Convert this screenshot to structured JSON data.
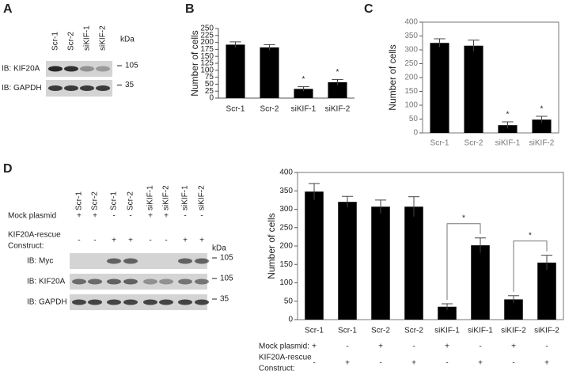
{
  "panel_labels": [
    "A",
    "B",
    "C",
    "D"
  ],
  "blot_a": {
    "lanes": [
      "Scr-1",
      "Scr-2",
      "siKIF-1",
      "siKIF-2"
    ],
    "unit": "kDa",
    "rows": [
      {
        "label": "IB: KIF20A",
        "kda": "105"
      },
      {
        "label": "IB: GAPDH",
        "kda": "35"
      }
    ]
  },
  "blot_d": {
    "lanes": [
      "Scr-1",
      "Scr-2",
      "Scr-1",
      "Scr-2",
      "siKIF-1",
      "siKIF-2",
      "siKIF-1",
      "siKIF-2"
    ],
    "unit": "kDa",
    "conditions": [
      {
        "label": [
          "Mock plasmid"
        ],
        "marks": [
          "+",
          "+",
          "-",
          "-",
          "+",
          "+",
          "-",
          "-"
        ]
      },
      {
        "label": [
          "KIF20A-rescue",
          "Construct:"
        ],
        "marks": [
          "-",
          "-",
          "+",
          "+",
          "-",
          "-",
          "+",
          "+"
        ]
      }
    ],
    "rows": [
      {
        "label": "IB: Myc",
        "kda": "105"
      },
      {
        "label": "IB: KIF20A",
        "kda": "105"
      },
      {
        "label": "IB: GAPDH",
        "kda": "35"
      }
    ]
  },
  "chart_data": [
    {
      "type": "bar",
      "y_label": "Number of cells",
      "color": "#000000",
      "frame": false,
      "categories": [
        "Scr-1",
        "Scr-2",
        "siKIF-1",
        "siKIF-2"
      ],
      "values": [
        192,
        182,
        33,
        57
      ],
      "errors": [
        10,
        10,
        8,
        10
      ],
      "significance": [
        null,
        null,
        "*",
        "*"
      ],
      "ylim": [
        0,
        250
      ],
      "yticks": [
        0,
        25,
        50,
        75,
        100,
        125,
        150,
        175,
        200,
        225,
        250
      ]
    },
    {
      "type": "bar",
      "y_label": "Number of cells",
      "color": "#000000",
      "frame": true,
      "categories": [
        "Scr-1",
        "Scr-2",
        "siKIF-1",
        "siKIF-2"
      ],
      "values": [
        325,
        315,
        28,
        48
      ],
      "errors": [
        15,
        20,
        12,
        12
      ],
      "significance": [
        null,
        null,
        "*",
        "*"
      ],
      "ylim": [
        0,
        400
      ],
      "yticks": [
        0,
        50,
        100,
        150,
        200,
        250,
        300,
        350,
        400
      ]
    },
    {
      "type": "bar",
      "y_label": "Number of cells",
      "color": "#000000",
      "frame": true,
      "categories": [
        "Scr-1",
        "Scr-1",
        "Scr-2",
        "Scr-2",
        "siKIF-1",
        "siKIF-1",
        "siKIF-2",
        "siKIF-2"
      ],
      "values": [
        348,
        320,
        307,
        307,
        35,
        202,
        55,
        155
      ],
      "errors": [
        22,
        15,
        18,
        27,
        8,
        20,
        10,
        20
      ],
      "comparisons": [
        {
          "pair": [
            4,
            5
          ],
          "label": "*"
        },
        {
          "pair": [
            6,
            7
          ],
          "label": "*"
        }
      ],
      "conditions": [
        {
          "label": [
            "Mock plasmid:"
          ],
          "marks": [
            "+",
            "-",
            "+",
            "-",
            "+",
            "-",
            "+",
            "-"
          ]
        },
        {
          "label": [
            "KIF20A-rescue",
            "Construct:"
          ],
          "marks": [
            "-",
            "+",
            "-",
            "+",
            "-",
            "+",
            "-",
            "+"
          ]
        }
      ],
      "ylim": [
        0,
        400
      ],
      "yticks": [
        0,
        50,
        100,
        150,
        200,
        250,
        300,
        350,
        400
      ]
    }
  ]
}
